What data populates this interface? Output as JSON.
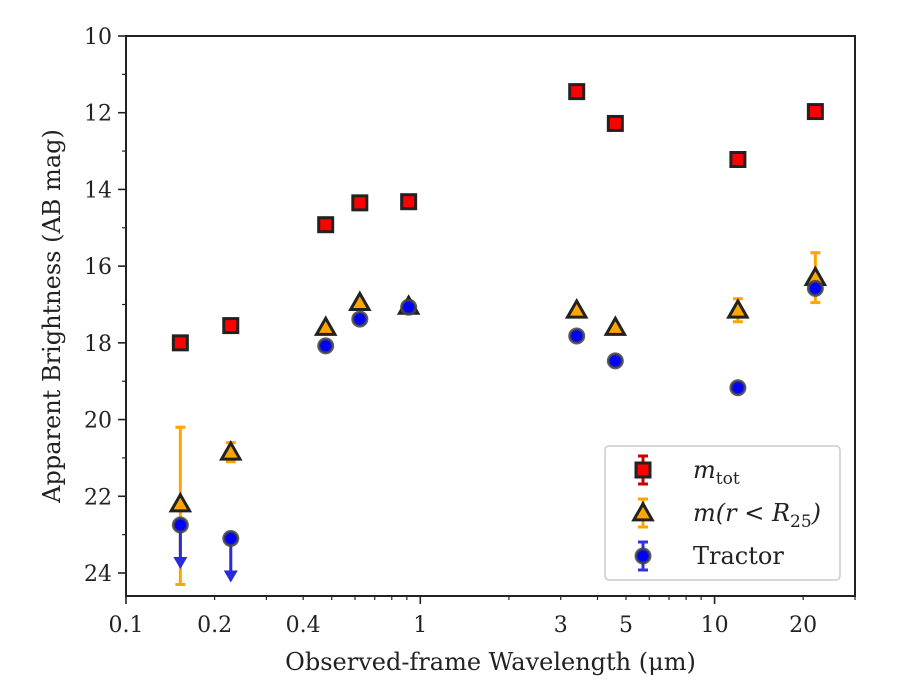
{
  "chart_data": {
    "type": "scatter",
    "xlabel": "Observed-frame Wavelength (μm)",
    "ylabel": "Apparent Brightness (AB mag)",
    "xscale": "log",
    "xlim": [
      0.1,
      30
    ],
    "ylim": [
      24.6,
      10
    ],
    "y_inverted": true,
    "x_ticks": [
      0.1,
      0.2,
      0.4,
      1,
      3,
      5,
      10,
      20
    ],
    "x_tick_labels": [
      "0.1",
      "0.2",
      "0.4",
      "1",
      "3",
      "5",
      "10",
      "20"
    ],
    "y_ticks": [
      10,
      12,
      14,
      16,
      18,
      20,
      22,
      24
    ],
    "y_tick_labels": [
      "10",
      "12",
      "14",
      "16",
      "18",
      "20",
      "22",
      "24"
    ],
    "legend_position": "lower right",
    "series": [
      {
        "name": "m_tot",
        "legend_main": "m",
        "legend_sub": "tot",
        "marker": "square",
        "fill": "#ff0000",
        "edge": "#222222",
        "err_color": "#cc0000",
        "points": [
          {
            "x": 0.153,
            "y": 18.0
          },
          {
            "x": 0.227,
            "y": 17.55
          },
          {
            "x": 0.477,
            "y": 14.92
          },
          {
            "x": 0.623,
            "y": 14.35
          },
          {
            "x": 0.913,
            "y": 14.32
          },
          {
            "x": 3.4,
            "y": 11.45
          },
          {
            "x": 4.6,
            "y": 12.28
          },
          {
            "x": 12.0,
            "y": 13.22
          },
          {
            "x": 22.0,
            "y": 11.97
          }
        ]
      },
      {
        "name": "m(r < R25)",
        "legend_main": "m(r < R",
        "legend_sub": "25",
        "legend_close": ")",
        "marker": "triangle",
        "fill": "#ffa500",
        "edge": "#222222",
        "err_color": "#ffa500",
        "points": [
          {
            "x": 0.153,
            "y": 22.2,
            "err_low": 20.2,
            "err_high": 24.3
          },
          {
            "x": 0.227,
            "y": 20.85,
            "err_low": 20.6,
            "err_high": 21.1
          },
          {
            "x": 0.477,
            "y": 17.6
          },
          {
            "x": 0.623,
            "y": 16.95
          },
          {
            "x": 0.913,
            "y": 17.05
          },
          {
            "x": 3.4,
            "y": 17.15
          },
          {
            "x": 4.6,
            "y": 17.6
          },
          {
            "x": 12.0,
            "y": 17.15,
            "err_low": 16.85,
            "err_high": 17.45
          },
          {
            "x": 22.0,
            "y": 16.3,
            "err_low": 15.65,
            "err_high": 16.95
          }
        ]
      },
      {
        "name": "Tractor",
        "legend_main": "Tractor",
        "marker": "circle",
        "fill": "#0000ff",
        "edge": "#444444",
        "err_color": "#3333dd",
        "points": [
          {
            "x": 0.153,
            "y": 22.75,
            "upper_limit": true
          },
          {
            "x": 0.227,
            "y": 23.1,
            "upper_limit": true
          },
          {
            "x": 0.477,
            "y": 18.08
          },
          {
            "x": 0.623,
            "y": 17.38
          },
          {
            "x": 0.913,
            "y": 17.07
          },
          {
            "x": 3.4,
            "y": 17.82
          },
          {
            "x": 4.6,
            "y": 18.47
          },
          {
            "x": 12.0,
            "y": 19.17
          },
          {
            "x": 22.0,
            "y": 16.58
          }
        ]
      }
    ]
  }
}
